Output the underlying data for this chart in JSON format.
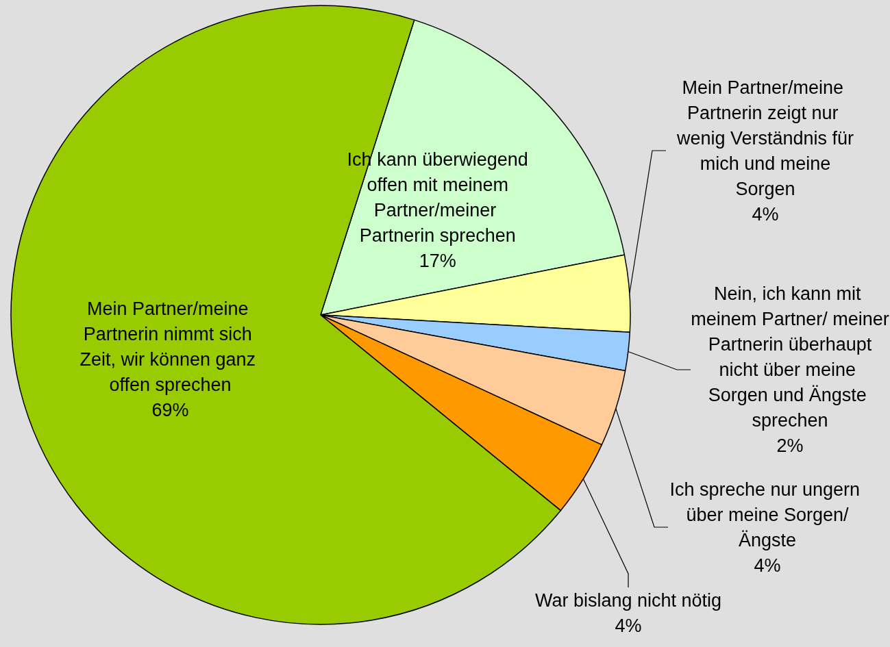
{
  "chart_data": {
    "type": "pie",
    "categories": [
      "Ich kann überwiegend offen mit meinem Partner/meiner Partnerin sprechen",
      "Mein Partner/meine Partnerin zeigt nur wenig Verständnis für mich und meine Sorgen",
      "Nein, ich kann mit meinem Partner/ meiner Partnerin überhaupt nicht über meine Sorgen und Ängste sprechen",
      "Ich spreche nur ungern über meine Sorgen/Ängste",
      "War bislang nicht nötig",
      "Mein Partner/meine Partnerin nimmt sich Zeit, wir können ganz offen sprechen"
    ],
    "values": [
      17,
      4,
      2,
      4,
      4,
      69
    ],
    "value_labels": [
      "17%",
      "4%",
      "2%",
      "4%",
      "4%",
      "69%"
    ],
    "colors": [
      "#ccffcc",
      "#ffff99",
      "#99ccff",
      "#ffcc99",
      "#ff9900",
      "#99cc00"
    ]
  }
}
